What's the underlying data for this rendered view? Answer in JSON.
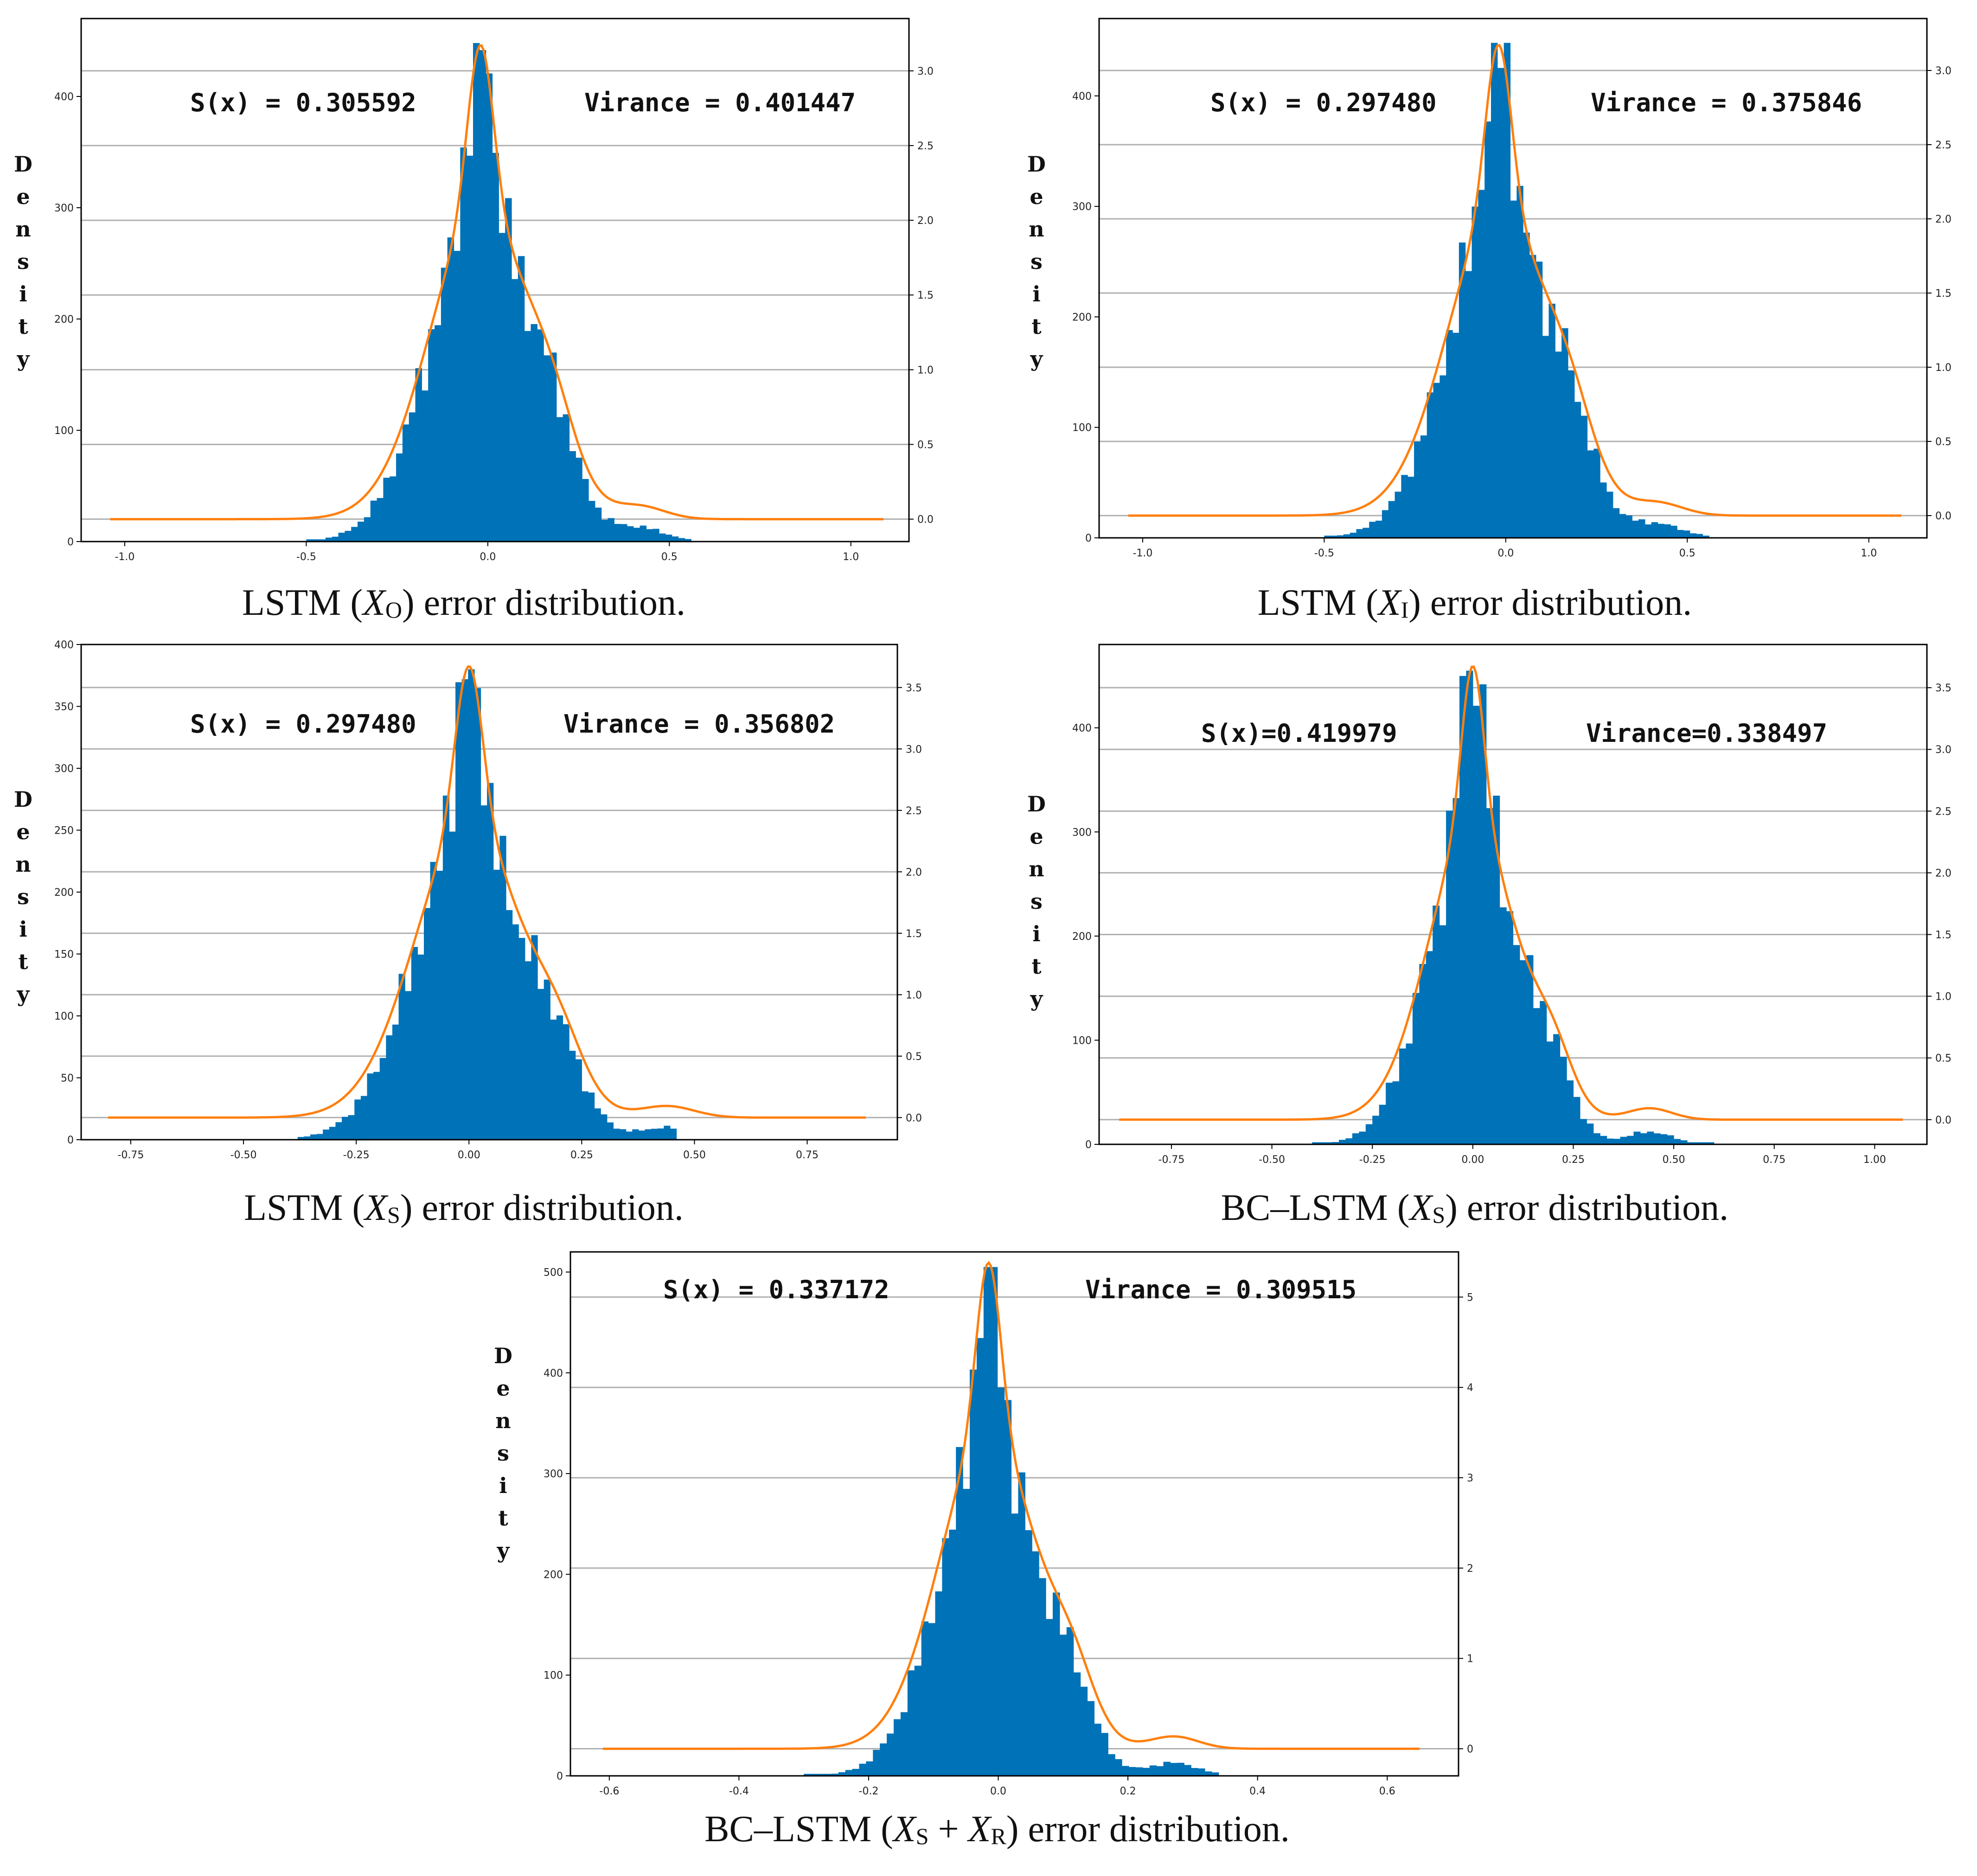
{
  "colors": {
    "bar": "#0072b8",
    "kde": "#ff7f0e",
    "grid": "#b0b0b0",
    "axis": "#000000"
  },
  "y_axis_letters": [
    "D",
    "e",
    "n",
    "s",
    "i",
    "t",
    "y"
  ],
  "chart_data": [
    {
      "type": "bar",
      "subtype": "histogram_with_kde",
      "caption": {
        "model": "LSTM",
        "var": "X",
        "sub": "O",
        "suffix": "error distribution."
      },
      "stat_s": "S(x) = 0.305592",
      "stat_v": "Virance = 0.401447",
      "center": -0.02,
      "sigma": 0.14,
      "right_shoulder": 0.2,
      "hist_range": [
        -0.5,
        0.56
      ],
      "xlim": [
        -1.12,
        1.16
      ],
      "x_ticks": [
        -1.0,
        -0.5,
        0.0,
        0.5,
        1.0
      ],
      "x_tick_labels": [
        "-1.0",
        "-0.5",
        "0.0",
        "0.5",
        "1.0"
      ],
      "ylim_left": [
        0,
        470
      ],
      "y_ticks_left": [
        0,
        100,
        200,
        300,
        400
      ],
      "y_ticks_left_labels": [
        "0",
        "100",
        "200",
        "300",
        "400"
      ],
      "ylim_right": [
        -0.15,
        3.35
      ],
      "y_ticks_right": [
        0.0,
        0.5,
        1.0,
        1.5,
        2.0,
        2.5,
        3.0
      ],
      "y_ticks_right_labels": [
        "0.0",
        "0.5",
        "1.0",
        "1.5",
        "2.0",
        "2.5",
        "3.0"
      ],
      "peak_count": 448,
      "kde_range": [
        -1.04,
        1.09
      ],
      "kde_peak": 3.17
    },
    {
      "type": "bar",
      "subtype": "histogram_with_kde",
      "caption": {
        "model": "LSTM",
        "var": "X",
        "sub": "I",
        "suffix": "error distribution."
      },
      "stat_s": "S(x) = 0.297480",
      "stat_v": "Virance = 0.375846",
      "center": -0.02,
      "sigma": 0.14,
      "right_shoulder": 0.2,
      "hist_range": [
        -0.5,
        0.56
      ],
      "xlim": [
        -1.12,
        1.16
      ],
      "x_ticks": [
        -1.0,
        -0.5,
        0.0,
        0.5,
        1.0
      ],
      "x_tick_labels": [
        "-1.0",
        "-0.5",
        "0.0",
        "0.5",
        "1.0"
      ],
      "ylim_left": [
        0,
        470
      ],
      "y_ticks_left": [
        0,
        100,
        200,
        300,
        400
      ],
      "y_ticks_left_labels": [
        "0",
        "100",
        "200",
        "300",
        "400"
      ],
      "ylim_right": [
        -0.15,
        3.35
      ],
      "y_ticks_right": [
        0.0,
        0.5,
        1.0,
        1.5,
        2.0,
        2.5,
        3.0
      ],
      "y_ticks_right_labels": [
        "0.0",
        "0.5",
        "1.0",
        "1.5",
        "2.0",
        "2.5",
        "3.0"
      ],
      "peak_count": 448,
      "kde_range": [
        -1.04,
        1.09
      ],
      "kde_peak": 3.17
    },
    {
      "type": "bar",
      "subtype": "histogram_with_kde",
      "caption": {
        "model": "LSTM",
        "var": "X",
        "sub": "S",
        "suffix": "error distribution."
      },
      "stat_s": "S(x) = 0.297480",
      "stat_v": "Virance = 0.356802",
      "center": 0.0,
      "sigma": 0.12,
      "right_shoulder": 0.2,
      "hist_range": [
        -0.38,
        0.46
      ],
      "xlim": [
        -0.86,
        0.95
      ],
      "x_ticks": [
        -0.75,
        -0.5,
        -0.25,
        0.0,
        0.25,
        0.5,
        0.75
      ],
      "x_tick_labels": [
        "-0.75",
        "-0.50",
        "-0.25",
        "0.00",
        "0.25",
        "0.50",
        "0.75"
      ],
      "ylim_left": [
        0,
        400
      ],
      "y_ticks_left": [
        0,
        50,
        100,
        150,
        200,
        250,
        300,
        350,
        400
      ],
      "y_ticks_left_labels": [
        "0",
        "50",
        "100",
        "150",
        "200",
        "250",
        "300",
        "350",
        "400"
      ],
      "ylim_right": [
        -0.18,
        3.85
      ],
      "y_ticks_right": [
        0.0,
        0.5,
        1.0,
        1.5,
        2.0,
        2.5,
        3.0,
        3.5
      ],
      "y_ticks_right_labels": [
        "0.0",
        "0.5",
        "1.0",
        "1.5",
        "2.0",
        "2.5",
        "3.0",
        "3.5"
      ],
      "peak_count": 380,
      "kde_range": [
        -0.8,
        0.88
      ],
      "kde_peak": 3.67
    },
    {
      "type": "bar",
      "subtype": "histogram_with_kde",
      "caption": {
        "model": "BC–LSTM",
        "var": "X",
        "sub": "S",
        "suffix": "error distribution."
      },
      "stat_s": "S(x)=0.419979",
      "stat_v": "Virance=0.338497",
      "center": 0.0,
      "sigma": 0.11,
      "right_shoulder": 0.2,
      "hist_range": [
        -0.4,
        0.6
      ],
      "xlim": [
        -0.93,
        1.13
      ],
      "x_ticks": [
        -0.75,
        -0.5,
        -0.25,
        0.0,
        0.25,
        0.5,
        0.75,
        1.0
      ],
      "x_tick_labels": [
        "-0.75",
        "-0.50",
        "-0.25",
        "0.00",
        "0.25",
        "0.50",
        "0.75",
        "1.00"
      ],
      "ylim_left": [
        0,
        480
      ],
      "y_ticks_left": [
        0,
        100,
        200,
        300,
        400
      ],
      "y_ticks_left_labels": [
        "0",
        "100",
        "200",
        "300",
        "400"
      ],
      "ylim_right": [
        -0.2,
        3.85
      ],
      "y_ticks_right": [
        0.0,
        0.5,
        1.0,
        1.5,
        2.0,
        2.5,
        3.0,
        3.5
      ],
      "y_ticks_right_labels": [
        "0.0",
        "0.5",
        "1.0",
        "1.5",
        "2.0",
        "2.5",
        "3.0",
        "3.5"
      ],
      "peak_count": 470,
      "kde_range": [
        -0.88,
        1.07
      ],
      "kde_peak": 3.67
    },
    {
      "type": "bar",
      "subtype": "histogram_with_kde",
      "caption": {
        "model": "BC–LSTM",
        "var": "X",
        "sub": "S",
        "plus": "+",
        "var2": "X",
        "sub2": "R",
        "suffix": "error distribution."
      },
      "stat_s": "S(x) = 0.337172",
      "stat_v": "Virance = 0.309515",
      "center": -0.015,
      "sigma": 0.075,
      "right_shoulder": 0.13,
      "hist_range": [
        -0.3,
        0.34
      ],
      "xlim": [
        -0.66,
        0.71
      ],
      "x_ticks": [
        -0.6,
        -0.4,
        -0.2,
        0.0,
        0.2,
        0.4,
        0.6
      ],
      "x_tick_labels": [
        "-0.6",
        "-0.4",
        "-0.2",
        "0.0",
        "0.2",
        "0.4",
        "0.6"
      ],
      "ylim_left": [
        0,
        520
      ],
      "y_ticks_left": [
        0,
        100,
        200,
        300,
        400,
        500
      ],
      "y_ticks_left_labels": [
        "0",
        "100",
        "200",
        "300",
        "400",
        "500"
      ],
      "ylim_right": [
        -0.3,
        5.5
      ],
      "y_ticks_right": [
        0,
        1,
        2,
        3,
        4,
        5
      ],
      "y_ticks_right_labels": [
        "0",
        "1",
        "2",
        "3",
        "4",
        "5"
      ],
      "peak_count": 505,
      "kde_range": [
        -0.61,
        0.65
      ],
      "kde_peak": 5.38
    }
  ]
}
